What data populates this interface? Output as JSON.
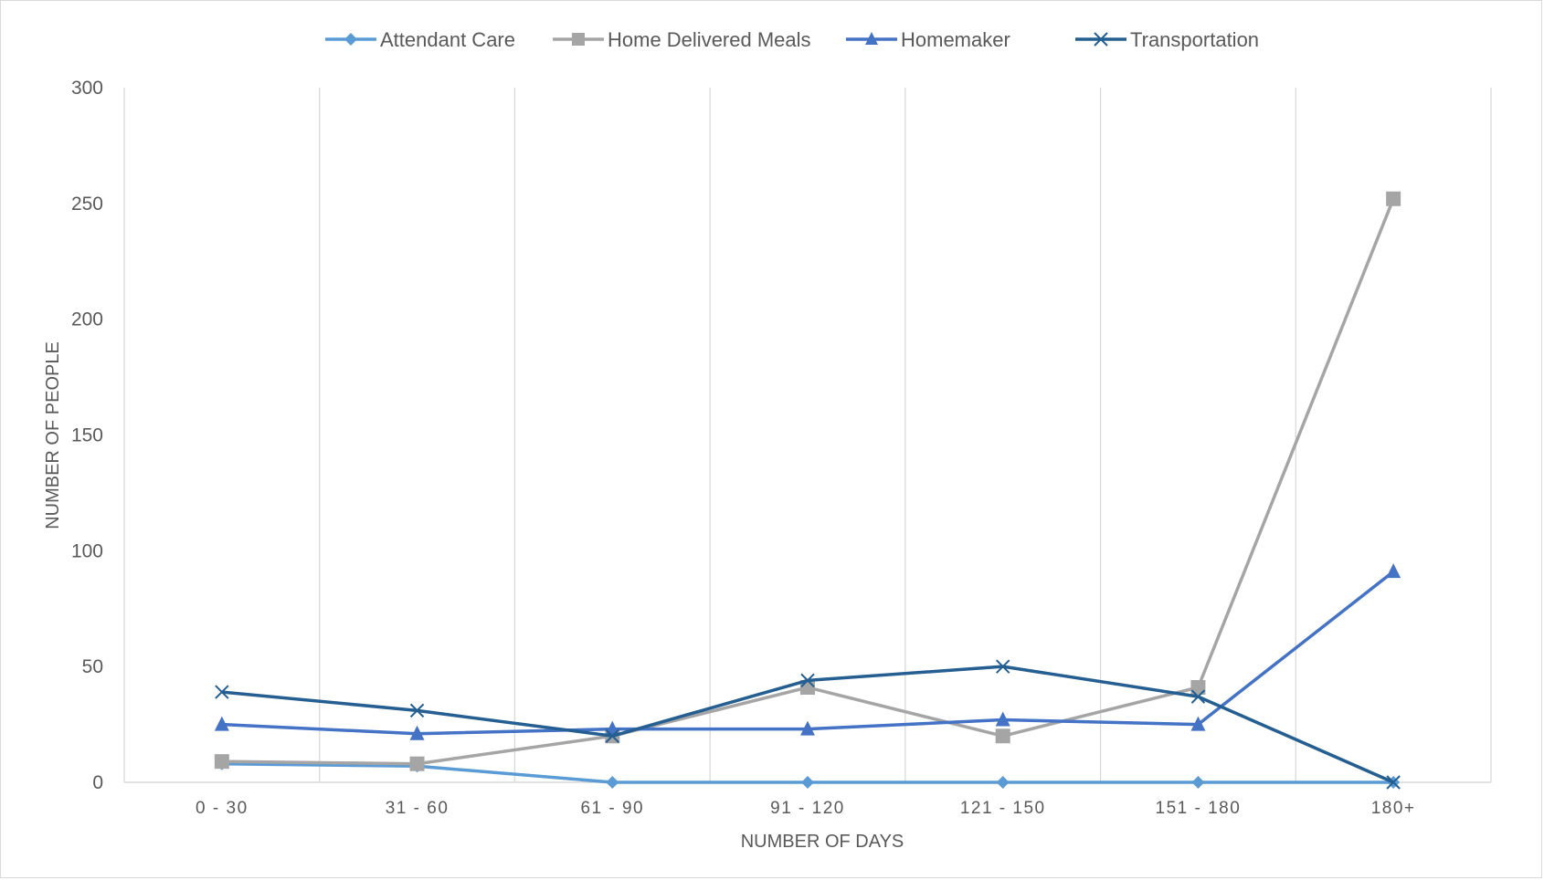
{
  "chart_data": {
    "type": "line",
    "categories": [
      "0 - 30",
      "31 - 60",
      "61 - 90",
      "91 - 120",
      "121 - 150",
      "151 - 180",
      "180+"
    ],
    "series": [
      {
        "name": "Attendant Care",
        "values": [
          8,
          7,
          0,
          0,
          0,
          0,
          0
        ],
        "color": "#5b9bd5",
        "marker": "diamond"
      },
      {
        "name": "Home Delivered Meals",
        "values": [
          9,
          8,
          20,
          41,
          20,
          41,
          252
        ],
        "color": "#a5a5a5",
        "marker": "square"
      },
      {
        "name": "Homemaker",
        "values": [
          25,
          21,
          23,
          23,
          27,
          25,
          91
        ],
        "color": "#4472c4",
        "marker": "triangle"
      },
      {
        "name": "Transportation",
        "values": [
          39,
          31,
          20,
          44,
          50,
          37,
          0
        ],
        "color": "#255e91",
        "marker": "x"
      }
    ],
    "xlabel": "NUMBER OF DAYS",
    "ylabel": "NUMBER OF PEOPLE",
    "ylim": [
      0,
      300
    ],
    "yticks": [
      "0",
      "50",
      "100",
      "150",
      "200",
      "250",
      "300"
    ],
    "grid": "vertical",
    "legend_position": "top"
  }
}
